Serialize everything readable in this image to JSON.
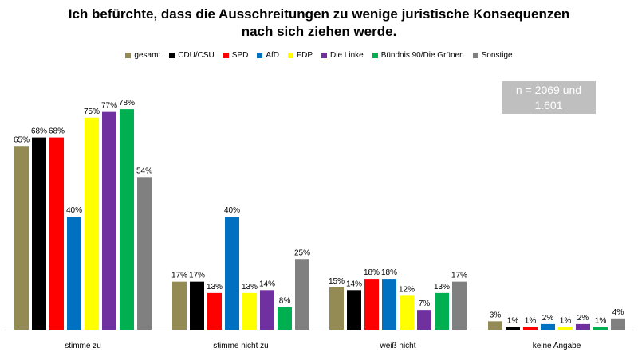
{
  "chart_data": {
    "type": "bar",
    "title_line1": "Ich befürchte, dass die Ausschreitungen zu wenige juristische Konsequenzen",
    "title_line2": "nach sich ziehen werde.",
    "categories": [
      "stimme zu",
      "stimme nicht zu",
      "weiß nicht",
      "keine Angabe"
    ],
    "series": [
      {
        "name": "gesamt",
        "color": "#948a54",
        "values": [
          65,
          17,
          15,
          3
        ],
        "labels": [
          "65%",
          "17%",
          "15%",
          "3%"
        ]
      },
      {
        "name": "CDU/CSU",
        "color": "#000000",
        "values": [
          68,
          17,
          14,
          1
        ],
        "labels": [
          "68%",
          "17%",
          "14%",
          "1%"
        ]
      },
      {
        "name": "SPD",
        "color": "#ff0000",
        "values": [
          68,
          13,
          18,
          1
        ],
        "labels": [
          "68%",
          "13%",
          "18%",
          "1%"
        ]
      },
      {
        "name": "AfD",
        "color": "#0070c0",
        "values": [
          40,
          40,
          18,
          2
        ],
        "labels": [
          "40%",
          "40%",
          "18%",
          "2%"
        ]
      },
      {
        "name": "FDP",
        "color": "#ffff00",
        "values": [
          75,
          13,
          12,
          1
        ],
        "labels": [
          "75%",
          "13%",
          "12%",
          "1%"
        ]
      },
      {
        "name": "Die Linke",
        "color": "#7030a0",
        "values": [
          77,
          14,
          7,
          2
        ],
        "labels": [
          "77%",
          "14%",
          "7%",
          "2%"
        ]
      },
      {
        "name": "Bündnis 90/Die Grünen",
        "color": "#00b050",
        "values": [
          78,
          8,
          13,
          1
        ],
        "labels": [
          "78%",
          "8%",
          "13%",
          "1%"
        ]
      },
      {
        "name": "Sonstige",
        "color": "#808080",
        "values": [
          54,
          25,
          17,
          4
        ],
        "labels": [
          "54%",
          "25%",
          "17%",
          "4%"
        ]
      }
    ],
    "ylim": [
      0,
      100
    ],
    "legend_position": "top",
    "grid": false,
    "annotation_line1": "n = 2069 und",
    "annotation_line2": "1.601"
  }
}
